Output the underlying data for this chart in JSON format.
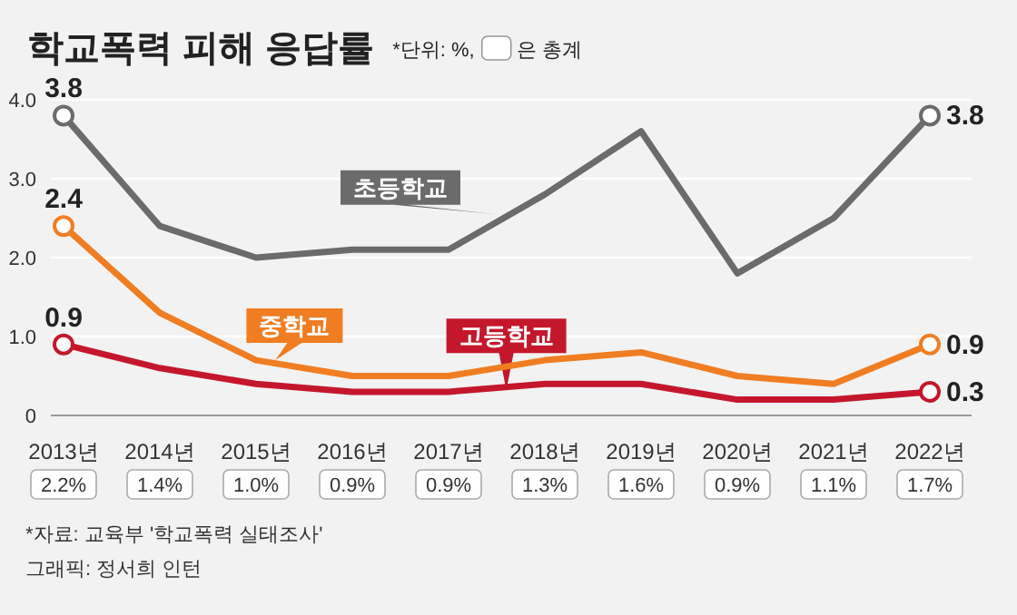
{
  "chart_data": {
    "type": "line",
    "title": "학교폭력 피해 응답률",
    "subtitle": "*단위: %,",
    "categories": [
      "2013년",
      "2014년",
      "2015년",
      "2016년",
      "2017년",
      "2018년",
      "2019년",
      "2020년",
      "2021년",
      "2022년"
    ],
    "series": [
      {
        "name": "초등학교",
        "color": "#6b6b6b",
        "values": [
          3.8,
          2.4,
          2.0,
          2.1,
          2.1,
          2.8,
          3.6,
          1.8,
          2.5,
          3.8
        ],
        "value_labels": [
          "3.8",
          null,
          null,
          null,
          null,
          null,
          null,
          null,
          null,
          "3.8"
        ]
      },
      {
        "name": "중학교",
        "color": "#f07d22",
        "values": [
          2.4,
          1.3,
          0.7,
          0.5,
          0.5,
          0.7,
          0.8,
          0.5,
          0.4,
          0.9
        ],
        "value_labels": [
          "2.4",
          null,
          null,
          null,
          null,
          null,
          null,
          null,
          null,
          "0.9"
        ]
      },
      {
        "name": "고등학교",
        "color": "#c4172c",
        "values": [
          0.9,
          0.6,
          0.4,
          0.3,
          0.3,
          0.4,
          0.4,
          0.2,
          0.2,
          0.3
        ],
        "value_labels": [
          "0.9",
          null,
          null,
          null,
          null,
          null,
          null,
          null,
          null,
          "0.3"
        ]
      }
    ],
    "ylim": [
      0,
      4
    ],
    "yticks": [
      0,
      {
        "value": 1,
        "label": "1.0"
      },
      {
        "value": 2,
        "label": "2.0"
      },
      {
        "value": 3,
        "label": "3.0"
      },
      {
        "value": 4,
        "label": "4.0"
      }
    ],
    "grid": "y",
    "line_style": "solid",
    "annotations": [
      "은 총계",
      "2.2%",
      "1.4%",
      "1.0%",
      "0.9%",
      "0.9%",
      "1.3%",
      "1.6%",
      "0.9%",
      "1.1%",
      "1.7%",
      "*자료: 교육부 '학교폭력 실태조사'",
      "그래픽: 정서희 인턴"
    ]
  }
}
